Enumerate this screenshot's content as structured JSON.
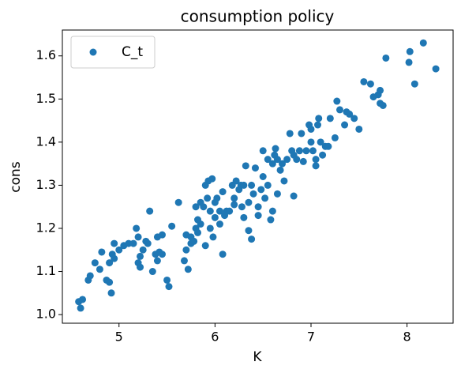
{
  "chart_data": {
    "type": "scatter",
    "title": "consumption policy",
    "x_label": "K",
    "y_label": "cons",
    "x": [
      4.58,
      4.6,
      4.62,
      4.68,
      4.7,
      4.75,
      4.8,
      4.82,
      4.87,
      4.9,
      4.9,
      4.92,
      4.93,
      4.95,
      4.95,
      5.0,
      5.05,
      5.1,
      5.15,
      5.18,
      5.2,
      5.2,
      5.22,
      5.22,
      5.25,
      5.28,
      5.3,
      5.32,
      5.35,
      5.38,
      5.4,
      5.4,
      5.42,
      5.45,
      5.45,
      5.5,
      5.52,
      5.55,
      5.62,
      5.68,
      5.7,
      5.7,
      5.72,
      5.75,
      5.75,
      5.78,
      5.8,
      5.8,
      5.82,
      5.82,
      5.85,
      5.85,
      5.88,
      5.9,
      5.9,
      5.92,
      5.93,
      5.95,
      5.95,
      5.97,
      5.98,
      6.0,
      6.0,
      6.02,
      6.05,
      6.05,
      6.08,
      6.08,
      6.1,
      6.12,
      6.15,
      6.18,
      6.2,
      6.2,
      6.22,
      6.25,
      6.27,
      6.28,
      6.3,
      6.3,
      6.32,
      6.35,
      6.35,
      6.38,
      6.38,
      6.4,
      6.42,
      6.45,
      6.45,
      6.48,
      6.5,
      6.5,
      6.52,
      6.55,
      6.55,
      6.58,
      6.6,
      6.6,
      6.62,
      6.63,
      6.65,
      6.65,
      6.68,
      6.7,
      6.72,
      6.75,
      6.78,
      6.8,
      6.82,
      6.82,
      6.85,
      6.88,
      6.9,
      6.92,
      6.95,
      6.98,
      7.0,
      7.0,
      7.02,
      7.05,
      7.05,
      7.07,
      7.08,
      7.1,
      7.12,
      7.15,
      7.18,
      7.2,
      7.25,
      7.27,
      7.3,
      7.35,
      7.37,
      7.4,
      7.45,
      7.5,
      7.55,
      7.62,
      7.65,
      7.7,
      7.72,
      7.72,
      7.75,
      7.78,
      8.02,
      8.03,
      8.08,
      8.17,
      8.3
    ],
    "series": [
      {
        "name": "C_t",
        "color": "#1f77b4",
        "values": [
          1.03,
          1.015,
          1.035,
          1.08,
          1.09,
          1.12,
          1.105,
          1.145,
          1.08,
          1.075,
          1.12,
          1.05,
          1.14,
          1.165,
          1.13,
          1.15,
          1.16,
          1.165,
          1.165,
          1.2,
          1.18,
          1.12,
          1.11,
          1.135,
          1.15,
          1.17,
          1.165,
          1.24,
          1.1,
          1.14,
          1.125,
          1.18,
          1.145,
          1.14,
          1.185,
          1.08,
          1.065,
          1.205,
          1.26,
          1.125,
          1.15,
          1.185,
          1.105,
          1.18,
          1.165,
          1.17,
          1.25,
          1.2,
          1.22,
          1.19,
          1.21,
          1.26,
          1.25,
          1.3,
          1.16,
          1.27,
          1.31,
          1.24,
          1.2,
          1.315,
          1.18,
          1.26,
          1.225,
          1.27,
          1.24,
          1.21,
          1.285,
          1.14,
          1.23,
          1.24,
          1.24,
          1.3,
          1.27,
          1.255,
          1.31,
          1.29,
          1.3,
          1.25,
          1.3,
          1.225,
          1.345,
          1.26,
          1.195,
          1.3,
          1.175,
          1.28,
          1.34,
          1.25,
          1.23,
          1.29,
          1.38,
          1.32,
          1.27,
          1.3,
          1.36,
          1.22,
          1.35,
          1.24,
          1.37,
          1.385,
          1.36,
          1.28,
          1.335,
          1.35,
          1.31,
          1.36,
          1.42,
          1.38,
          1.37,
          1.275,
          1.36,
          1.38,
          1.42,
          1.355,
          1.38,
          1.44,
          1.4,
          1.43,
          1.38,
          1.36,
          1.345,
          1.44,
          1.455,
          1.4,
          1.37,
          1.39,
          1.39,
          1.455,
          1.41,
          1.495,
          1.475,
          1.44,
          1.47,
          1.465,
          1.455,
          1.43,
          1.54,
          1.535,
          1.505,
          1.51,
          1.52,
          1.49,
          1.485,
          1.595,
          1.585,
          1.61,
          1.535,
          1.63,
          1.57
        ]
      }
    ],
    "xlim": [
      4.41,
      8.48
    ],
    "xticks": [
      5,
      6,
      7,
      8
    ],
    "ylim": [
      0.98,
      1.66
    ],
    "yticks": [
      {
        "value": 1,
        "label": "1.0"
      },
      1.1,
      1.2,
      1.3,
      1.4,
      1.5,
      1.6
    ],
    "legend": "upper left",
    "grid": false
  }
}
